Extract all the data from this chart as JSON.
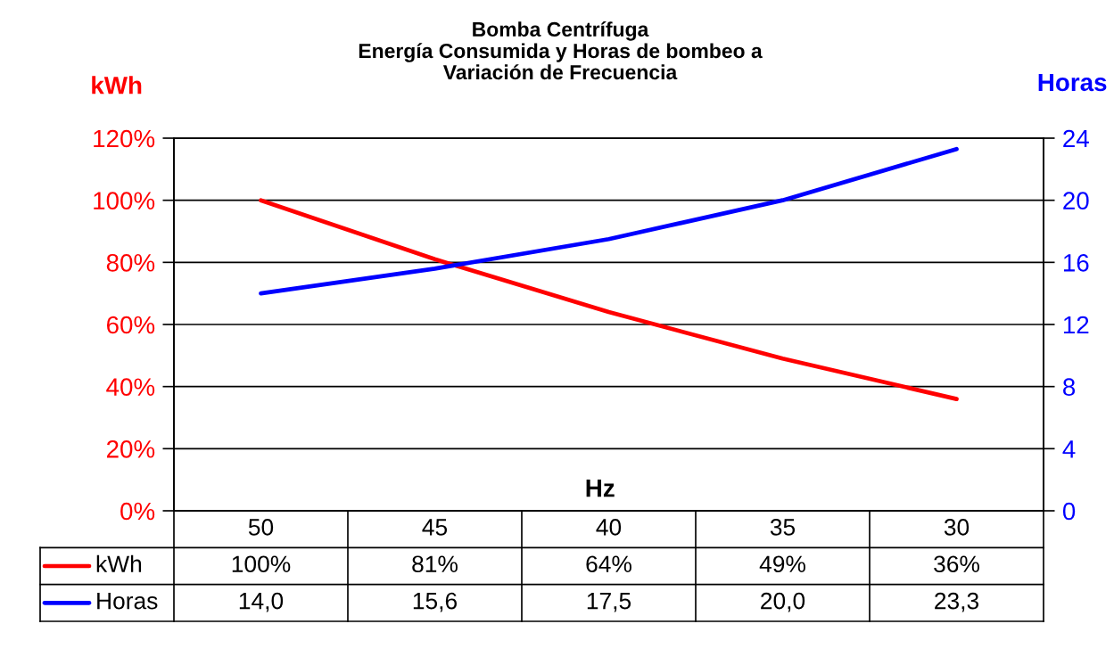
{
  "chart_data": {
    "type": "line",
    "title": "Bomba Centrífuga\nEnergía Consumida y Horas de bombeo a\nVariación de Frecuencia",
    "xlabel": "Hz",
    "ylabel": "kWh",
    "y2label": "Horas",
    "categories": [
      "50",
      "45",
      "40",
      "35",
      "30"
    ],
    "series": [
      {
        "name": "kWh",
        "color": "#ff0000",
        "values": [
          100,
          81,
          64,
          49,
          36
        ],
        "value_labels": [
          "100%",
          "81%",
          "64%",
          "49%",
          "36%"
        ]
      },
      {
        "name": "Horas",
        "color": "#0000ff",
        "axis": "y2",
        "values": [
          14.0,
          15.6,
          17.5,
          20.0,
          23.3
        ],
        "value_labels": [
          "14,0",
          "15,6",
          "17,5",
          "20,0",
          "23,3"
        ]
      }
    ],
    "ylim": [
      0,
      120
    ],
    "yticks": [
      {
        "value": 0,
        "label": "0%"
      },
      {
        "value": 20,
        "label": "20%"
      },
      {
        "value": 40,
        "label": "40%"
      },
      {
        "value": 60,
        "label": "60%"
      },
      {
        "value": 80,
        "label": "80%"
      },
      {
        "value": 100,
        "label": "100%"
      },
      {
        "value": 120,
        "label": "120%"
      }
    ],
    "y2lim": [
      0,
      24
    ],
    "y2ticks": [
      0,
      4,
      8,
      12,
      16,
      20,
      24
    ],
    "grid": "y",
    "legend": "bottom",
    "line_style": "solid"
  }
}
